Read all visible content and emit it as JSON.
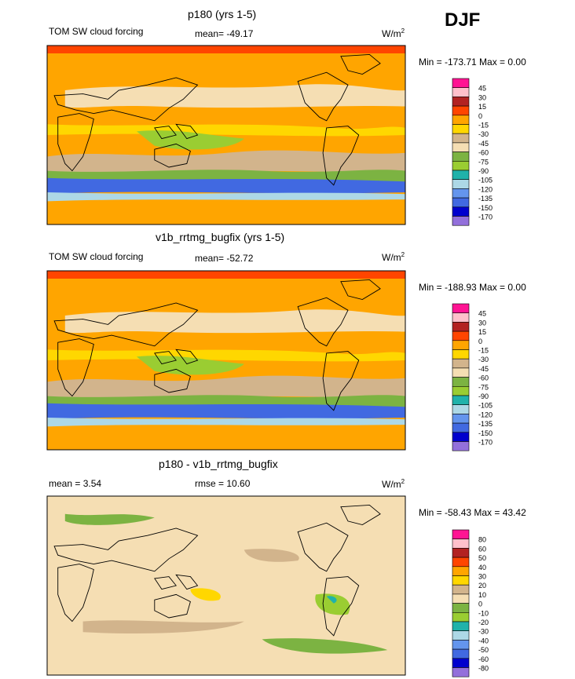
{
  "page": {
    "season": "DJF"
  },
  "chart_data": [
    {
      "type": "heatmap",
      "title": "p180 (yrs 1-5)",
      "variable": "TOM SW cloud forcing",
      "stat_text": "mean= -49.17",
      "units": "W/m",
      "units_exp": "2",
      "minmax_text": "Min = -173.71 Max =   0.00",
      "levels": [
        "45",
        "30",
        "15",
        "0",
        "-15",
        "-30",
        "-45",
        "-60",
        "-75",
        "-90",
        "-105",
        "-120",
        "-135",
        "-150",
        "-170"
      ],
      "colors": [
        "#ff1493",
        "#ffc0cb",
        "#b22222",
        "#ff4500",
        "#ffa500",
        "#ffd700",
        "#d2b48c",
        "#f5deb3",
        "#7cb342",
        "#9acd32",
        "#20b2aa",
        "#add8e6",
        "#6495ed",
        "#4169e1",
        "#0000cd",
        "#9370db"
      ]
    },
    {
      "type": "heatmap",
      "title": "v1b_rrtmg_bugfix (yrs 1-5)",
      "variable": "TOM SW cloud forcing",
      "stat_text": "mean= -52.72",
      "units": "W/m",
      "units_exp": "2",
      "minmax_text": "Min = -188.93 Max =   0.00",
      "levels": [
        "45",
        "30",
        "15",
        "0",
        "-15",
        "-30",
        "-45",
        "-60",
        "-75",
        "-90",
        "-105",
        "-120",
        "-135",
        "-150",
        "-170"
      ],
      "colors": [
        "#ff1493",
        "#ffc0cb",
        "#b22222",
        "#ff4500",
        "#ffa500",
        "#ffd700",
        "#d2b48c",
        "#f5deb3",
        "#7cb342",
        "#9acd32",
        "#20b2aa",
        "#add8e6",
        "#6495ed",
        "#4169e1",
        "#0000cd",
        "#9370db"
      ]
    },
    {
      "type": "heatmap",
      "title": "p180 - v1b_rrtmg_bugfix",
      "variable": "",
      "stat_text": "mean =   3.54",
      "stat2_text": "rmse =  10.60",
      "units": "W/m",
      "units_exp": "2",
      "minmax_text": "Min = -58.43 Max =  43.42",
      "levels": [
        "80",
        "60",
        "50",
        "40",
        "30",
        "20",
        "10",
        "0",
        "-10",
        "-20",
        "-30",
        "-40",
        "-50",
        "-60",
        "-80"
      ],
      "colors": [
        "#ff1493",
        "#ffc0cb",
        "#b22222",
        "#ff4500",
        "#ffa500",
        "#ffd700",
        "#d2b48c",
        "#f5deb3",
        "#7cb342",
        "#9acd32",
        "#20b2aa",
        "#add8e6",
        "#6495ed",
        "#4169e1",
        "#0000cd",
        "#9370db"
      ]
    }
  ]
}
